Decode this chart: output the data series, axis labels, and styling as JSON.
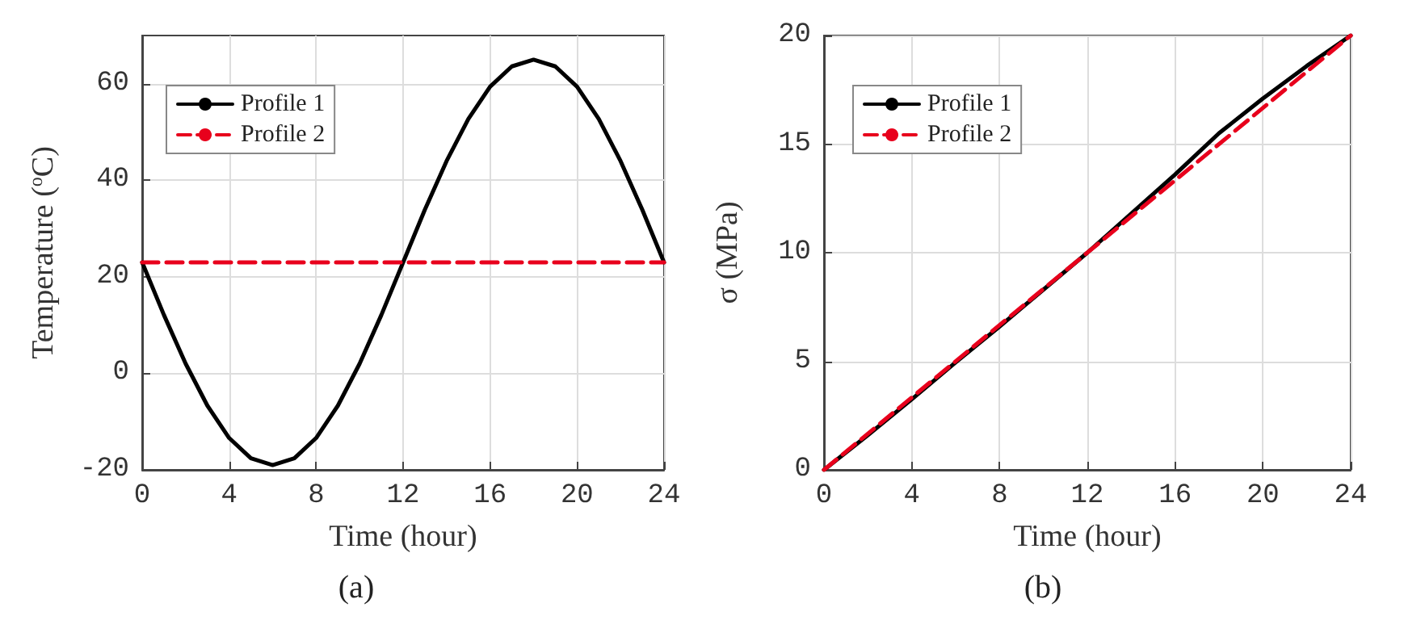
{
  "chart_data": [
    {
      "type": "line",
      "xlabel": "Time (hour)",
      "ylabel": "Temperature ($^{o}$C)",
      "annotations": [
        "(a)"
      ],
      "xlim": [
        0,
        24
      ],
      "xticks": [
        0,
        4,
        8,
        12,
        16,
        20,
        24
      ],
      "ylim": [
        -20,
        70
      ],
      "yticks": [
        -20,
        0,
        20,
        40,
        60
      ],
      "grid": true,
      "legend": "top left",
      "marker": "none",
      "series": [
        {
          "name": "Profile 1",
          "color": "#000000",
          "line_style": "solid",
          "x": [
            0,
            1,
            2,
            3,
            4,
            5,
            6,
            7,
            8,
            9,
            10,
            11,
            12,
            13,
            14,
            15,
            16,
            17,
            18,
            19,
            20,
            21,
            22,
            23,
            24
          ],
          "values": [
            23,
            12.1,
            2,
            -6.7,
            -13.4,
            -17.6,
            -19,
            -17.6,
            -13.4,
            -6.7,
            2,
            12.1,
            23,
            33.9,
            44,
            52.7,
            59.4,
            63.6,
            65,
            63.6,
            59.4,
            52.7,
            44,
            33.9,
            23
          ]
        },
        {
          "name": "Profile 2",
          "color": "#e8001c",
          "line_style": "dashed",
          "x": [
            0,
            24
          ],
          "values": [
            23,
            23
          ]
        }
      ]
    },
    {
      "type": "line",
      "xlabel": "Time (hour)",
      "ylabel": "σ (MPa)",
      "annotations": [
        "(b)"
      ],
      "xlim": [
        0,
        24
      ],
      "xticks": [
        0,
        4,
        8,
        12,
        16,
        20,
        24
      ],
      "ylim": [
        0,
        20
      ],
      "yticks": [
        0,
        5,
        10,
        15,
        20
      ],
      "grid": true,
      "legend": "top left",
      "marker": "none",
      "series": [
        {
          "name": "Profile 1",
          "color": "#000000",
          "line_style": "solid",
          "x": [
            0,
            2,
            4,
            6,
            8,
            10,
            12,
            14,
            16,
            18,
            20,
            22,
            24
          ],
          "values": [
            0,
            1.6,
            3.25,
            4.95,
            6.6,
            8.3,
            10,
            11.8,
            13.6,
            15.5,
            17.1,
            18.6,
            20
          ]
        },
        {
          "name": "Profile 2",
          "color": "#e8001c",
          "line_style": "dashed",
          "x": [
            0,
            24
          ],
          "values": [
            0,
            20
          ]
        }
      ]
    }
  ]
}
